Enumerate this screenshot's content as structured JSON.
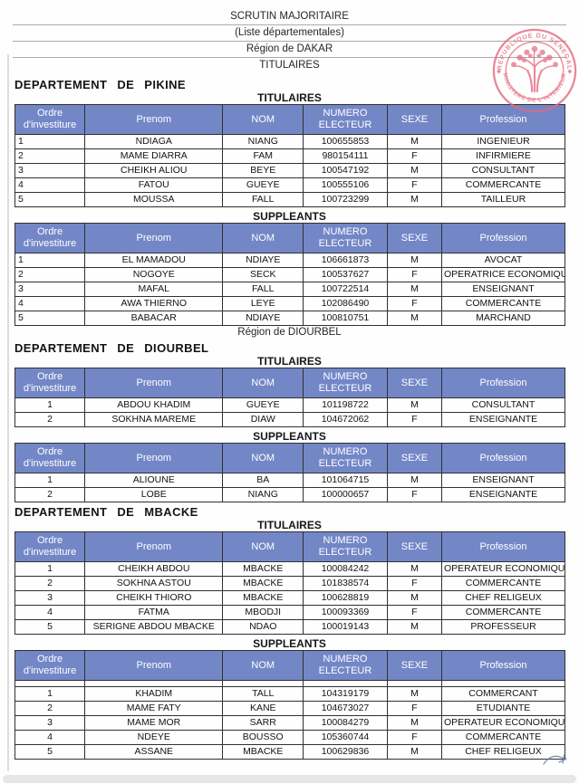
{
  "document_header": {
    "line1": "SCRUTIN MAJORITAIRE",
    "line2": "(Liste départementales)",
    "line3": "Région de DAKAR",
    "line4": "TITULAIRES"
  },
  "stamp": {
    "top_text": "REPUBLIQUE DU SENEGAL",
    "bottom_text": "MINISTERE DE L'INTERIEUR",
    "color": "#e4677c"
  },
  "colors": {
    "table_header_bg": "#7387c7",
    "table_header_text": "#ffffff",
    "stamp_pink": "#e4677c"
  },
  "table_headers": {
    "ordre": "Ordre d'investiture",
    "prenom": "Prenom",
    "nom": "NOM",
    "numero": "NUMERO ELECTEUR",
    "sexe": "SEXE",
    "profession": "Profession"
  },
  "sections": [
    {
      "title": "DEPARTEMENT DE PIKINE",
      "tables": [
        {
          "label": "TITULAIRES",
          "rows": [
            [
              "1",
              "NDIAGA",
              "NIANG",
              "100655853",
              "M",
              "INGENIEUR"
            ],
            [
              "2",
              "MAME DIARRA",
              "FAM",
              "980154111",
              "F",
              "INFIRMIERE"
            ],
            [
              "3",
              "CHEIKH ALIOU",
              "BEYE",
              "100547192",
              "M",
              "CONSULTANT"
            ],
            [
              "4",
              "FATOU",
              "GUEYE",
              "100555106",
              "F",
              "COMMERCANTE"
            ],
            [
              "5",
              "MOUSSA",
              "FALL",
              "100723299",
              "M",
              "TAILLEUR"
            ]
          ]
        },
        {
          "label": "SUPPLEANTS",
          "rows": [
            [
              "1",
              "EL MAMADOU",
              "NDIAYE",
              "106661873",
              "M",
              "AVOCAT"
            ],
            [
              "2",
              "NOGOYE",
              "SECK",
              "100537627",
              "F",
              "OPERATRICE ECONOMIQUE"
            ],
            [
              "3",
              "MAFAL",
              "FALL",
              "100722514",
              "M",
              "ENSEIGNANT"
            ],
            [
              "4",
              "AWA THIERNO",
              "LEYE",
              "102086490",
              "F",
              "COMMERCANTE"
            ],
            [
              "5",
              "BABACAR",
              "NDIAYE",
              "100810751",
              "M",
              "MARCHAND"
            ]
          ]
        }
      ],
      "footer_note": "Région de DIOURBEL"
    },
    {
      "title": "DEPARTEMENT DE DIOURBEL",
      "tables": [
        {
          "label": "TITULAIRES",
          "rows": [
            [
              "1",
              "ABDOU KHADIM",
              "GUEYE",
              "101198722",
              "M",
              "CONSULTANT"
            ],
            [
              "2",
              "SOKHNA MAREME",
              "DIAW",
              "104672062",
              "F",
              "ENSEIGNANTE"
            ]
          ]
        },
        {
          "label": "SUPPLEANTS",
          "rows": [
            [
              "1",
              "ALIOUNE",
              "BA",
              "101064715",
              "M",
              "ENSEIGNANT"
            ],
            [
              "2",
              "LOBE",
              "NIANG",
              "100000657",
              "F",
              "ENSEIGNANTE"
            ]
          ]
        }
      ]
    },
    {
      "title": "DEPARTEMENT DE MBACKE",
      "tables": [
        {
          "label": "TITULAIRES",
          "rows": [
            [
              "1",
              "CHEIKH ABDOU",
              "MBACKE",
              "100084242",
              "M",
              "OPERATEUR ECONOMIQUE"
            ],
            [
              "2",
              "SOKHNA ASTOU",
              "MBACKE",
              "101838574",
              "F",
              "COMMERCANTE"
            ],
            [
              "3",
              "CHEIKH THIORO",
              "MBACKE",
              "100628819",
              "M",
              "CHEF RELIGEUX"
            ],
            [
              "4",
              "FATMA",
              "MBODJI",
              "100093369",
              "F",
              "COMMERCANTE"
            ],
            [
              "5",
              "SERIGNE ABDOU MBACKE",
              "NDAO",
              "100019143",
              "M",
              "PROFESSEUR"
            ]
          ]
        },
        {
          "label": "SUPPLEANTS",
          "rows": [
            [
              "1",
              "KHADIM",
              "TALL",
              "104319179",
              "M",
              "COMMERCANT"
            ],
            [
              "2",
              "MAME FATY",
              "KANE",
              "104673027",
              "F",
              "ETUDIANTE"
            ],
            [
              "3",
              "MAME MOR",
              "SARR",
              "100084279",
              "M",
              "OPERATEUR ECONOMIQUE"
            ],
            [
              "4",
              "NDEYE",
              "BOUSSO",
              "105360744",
              "F",
              "COMMERCANTE"
            ],
            [
              "5",
              "ASSANE",
              "MBACKE",
              "100629836",
              "M",
              "CHEF RELIGEUX"
            ]
          ]
        }
      ]
    }
  ]
}
